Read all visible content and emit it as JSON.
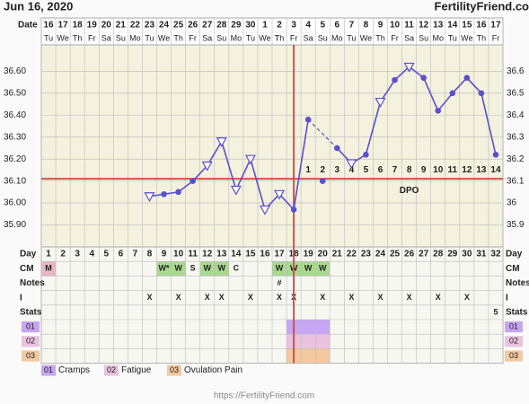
{
  "header": {
    "date": "Jun 16, 2020",
    "site": "FertilityFriend.co"
  },
  "footer": "https://FertilityFriend.com",
  "chart_data": {
    "type": "line",
    "date_label": "Date",
    "dates": [
      16,
      17,
      18,
      19,
      20,
      21,
      22,
      23,
      24,
      25,
      26,
      27,
      28,
      29,
      30,
      1,
      2,
      3,
      4,
      5,
      6,
      7,
      8,
      9,
      10,
      11,
      12,
      13,
      14,
      15,
      16,
      17
    ],
    "weekdays": [
      "Tu",
      "We",
      "Th",
      "Fr",
      "Sa",
      "Su",
      "Mo",
      "Tu",
      "We",
      "Th",
      "Fr",
      "Sa",
      "Su",
      "Mo",
      "Tu",
      "We",
      "Th",
      "Fr",
      "Sa",
      "Su",
      "Mo",
      "Tu",
      "We",
      "Th",
      "Fr",
      "Sa",
      "Su",
      "Mo",
      "Tu",
      "We",
      "Th",
      "Fr"
    ],
    "days": [
      1,
      2,
      3,
      4,
      5,
      6,
      7,
      8,
      9,
      10,
      11,
      12,
      13,
      14,
      15,
      16,
      17,
      18,
      19,
      20,
      21,
      22,
      23,
      24,
      25,
      26,
      27,
      28,
      29,
      30,
      31,
      32
    ],
    "ylim": [
      35.8,
      36.72
    ],
    "yticks": [
      {
        "value": 36.6,
        "label": "36.60"
      },
      {
        "value": 36.5,
        "label": "36.50"
      },
      {
        "value": 36.4,
        "label": "36.40"
      },
      {
        "value": 36.3,
        "label": "36.30"
      },
      {
        "value": 36.2,
        "label": "36.20"
      },
      {
        "value": 36.1,
        "label": "36.10"
      },
      {
        "value": 36.0,
        "label": "36.00"
      },
      {
        "value": 35.9,
        "label": "35.90"
      }
    ],
    "y2lim": [
      35.8,
      36.72
    ],
    "y2ticks": [
      36.6,
      36.5,
      36.4,
      36.3,
      36.2,
      36.1,
      36.0,
      35.9
    ],
    "grid": true,
    "series": [
      {
        "color": "#5a4fcf",
        "values": [
          null,
          null,
          null,
          null,
          null,
          null,
          null,
          36.03,
          36.04,
          36.05,
          36.1,
          36.17,
          36.28,
          36.06,
          36.2,
          35.97,
          36.04,
          35.97,
          36.38,
          null,
          36.25,
          36.18,
          36.22,
          36.46,
          36.56,
          36.62,
          36.57,
          36.42,
          36.5,
          36.57,
          36.5,
          36.22
        ],
        "markers": [
          null,
          null,
          null,
          null,
          null,
          null,
          null,
          "triangle",
          "dot",
          "dot",
          "dot",
          "triangle",
          "triangle",
          "triangle",
          "triangle",
          "triangle",
          "triangle",
          "dot",
          "dot",
          null,
          "dot",
          "triangle",
          "dot",
          "triangle",
          "dot",
          "triangle",
          "dot",
          "dot",
          "dot",
          "dot",
          "dot",
          "dot"
        ]
      },
      {
        "color": "#5a4fcf",
        "values": [
          null,
          null,
          null,
          null,
          null,
          null,
          null,
          null,
          null,
          null,
          null,
          null,
          null,
          null,
          null,
          null,
          null,
          null,
          null,
          36.1,
          null,
          null,
          null,
          null,
          null,
          null,
          null,
          null,
          null,
          null,
          null,
          null
        ],
        "markers": [
          null,
          null,
          null,
          null,
          null,
          null,
          null,
          null,
          null,
          null,
          null,
          null,
          null,
          null,
          null,
          null,
          null,
          null,
          null,
          "dot",
          null,
          null,
          null,
          null,
          null,
          null,
          null,
          null,
          null,
          null,
          null,
          null
        ]
      }
    ],
    "coverline": 36.11,
    "ovulation_day": 18,
    "line_color": "#d0524a",
    "dpo": [
      null,
      null,
      null,
      null,
      null,
      null,
      null,
      null,
      null,
      null,
      null,
      null,
      null,
      null,
      null,
      null,
      null,
      null,
      1,
      2,
      3,
      4,
      5,
      6,
      7,
      8,
      9,
      10,
      11,
      12,
      13,
      14
    ],
    "dpo_label": "DPO",
    "row_labels": [
      "Day",
      "CM",
      "Notes",
      "I",
      "Stats"
    ],
    "cm": [
      "M",
      null,
      null,
      null,
      null,
      null,
      null,
      null,
      "W*",
      "W",
      "S",
      "W",
      "W",
      "C",
      null,
      null,
      "W",
      "W",
      "W",
      "W",
      null,
      null,
      null,
      null,
      null,
      null,
      null,
      null,
      null,
      null,
      null,
      null
    ],
    "notes": [
      null,
      null,
      null,
      null,
      null,
      null,
      null,
      null,
      null,
      null,
      null,
      null,
      null,
      null,
      null,
      null,
      "#",
      null,
      null,
      null,
      null,
      null,
      null,
      null,
      null,
      null,
      null,
      null,
      null,
      null,
      null,
      null
    ],
    "intercourse": [
      null,
      null,
      null,
      null,
      null,
      null,
      null,
      "X",
      null,
      "X",
      null,
      "X",
      "X",
      null,
      "X",
      null,
      "X",
      "X",
      null,
      "X",
      null,
      "X",
      null,
      "X",
      null,
      "X",
      null,
      "X",
      null,
      "X",
      null,
      null
    ],
    "stats": [
      null,
      null,
      null,
      null,
      null,
      null,
      null,
      null,
      null,
      null,
      null,
      null,
      null,
      null,
      null,
      null,
      null,
      null,
      null,
      null,
      null,
      null,
      null,
      null,
      null,
      null,
      null,
      null,
      null,
      null,
      null,
      "5"
    ],
    "symptoms": [
      {
        "code": "01",
        "name": "Cramps",
        "color": "#c6a5f3",
        "days": [
          18,
          19,
          20
        ]
      },
      {
        "code": "02",
        "name": "Fatigue",
        "color": "#e9c3dd",
        "days": [
          18,
          19,
          20
        ]
      },
      {
        "code": "03",
        "name": "Ovulation Pain",
        "color": "#f3c9a0",
        "days": [
          18,
          19,
          20
        ]
      }
    ]
  }
}
